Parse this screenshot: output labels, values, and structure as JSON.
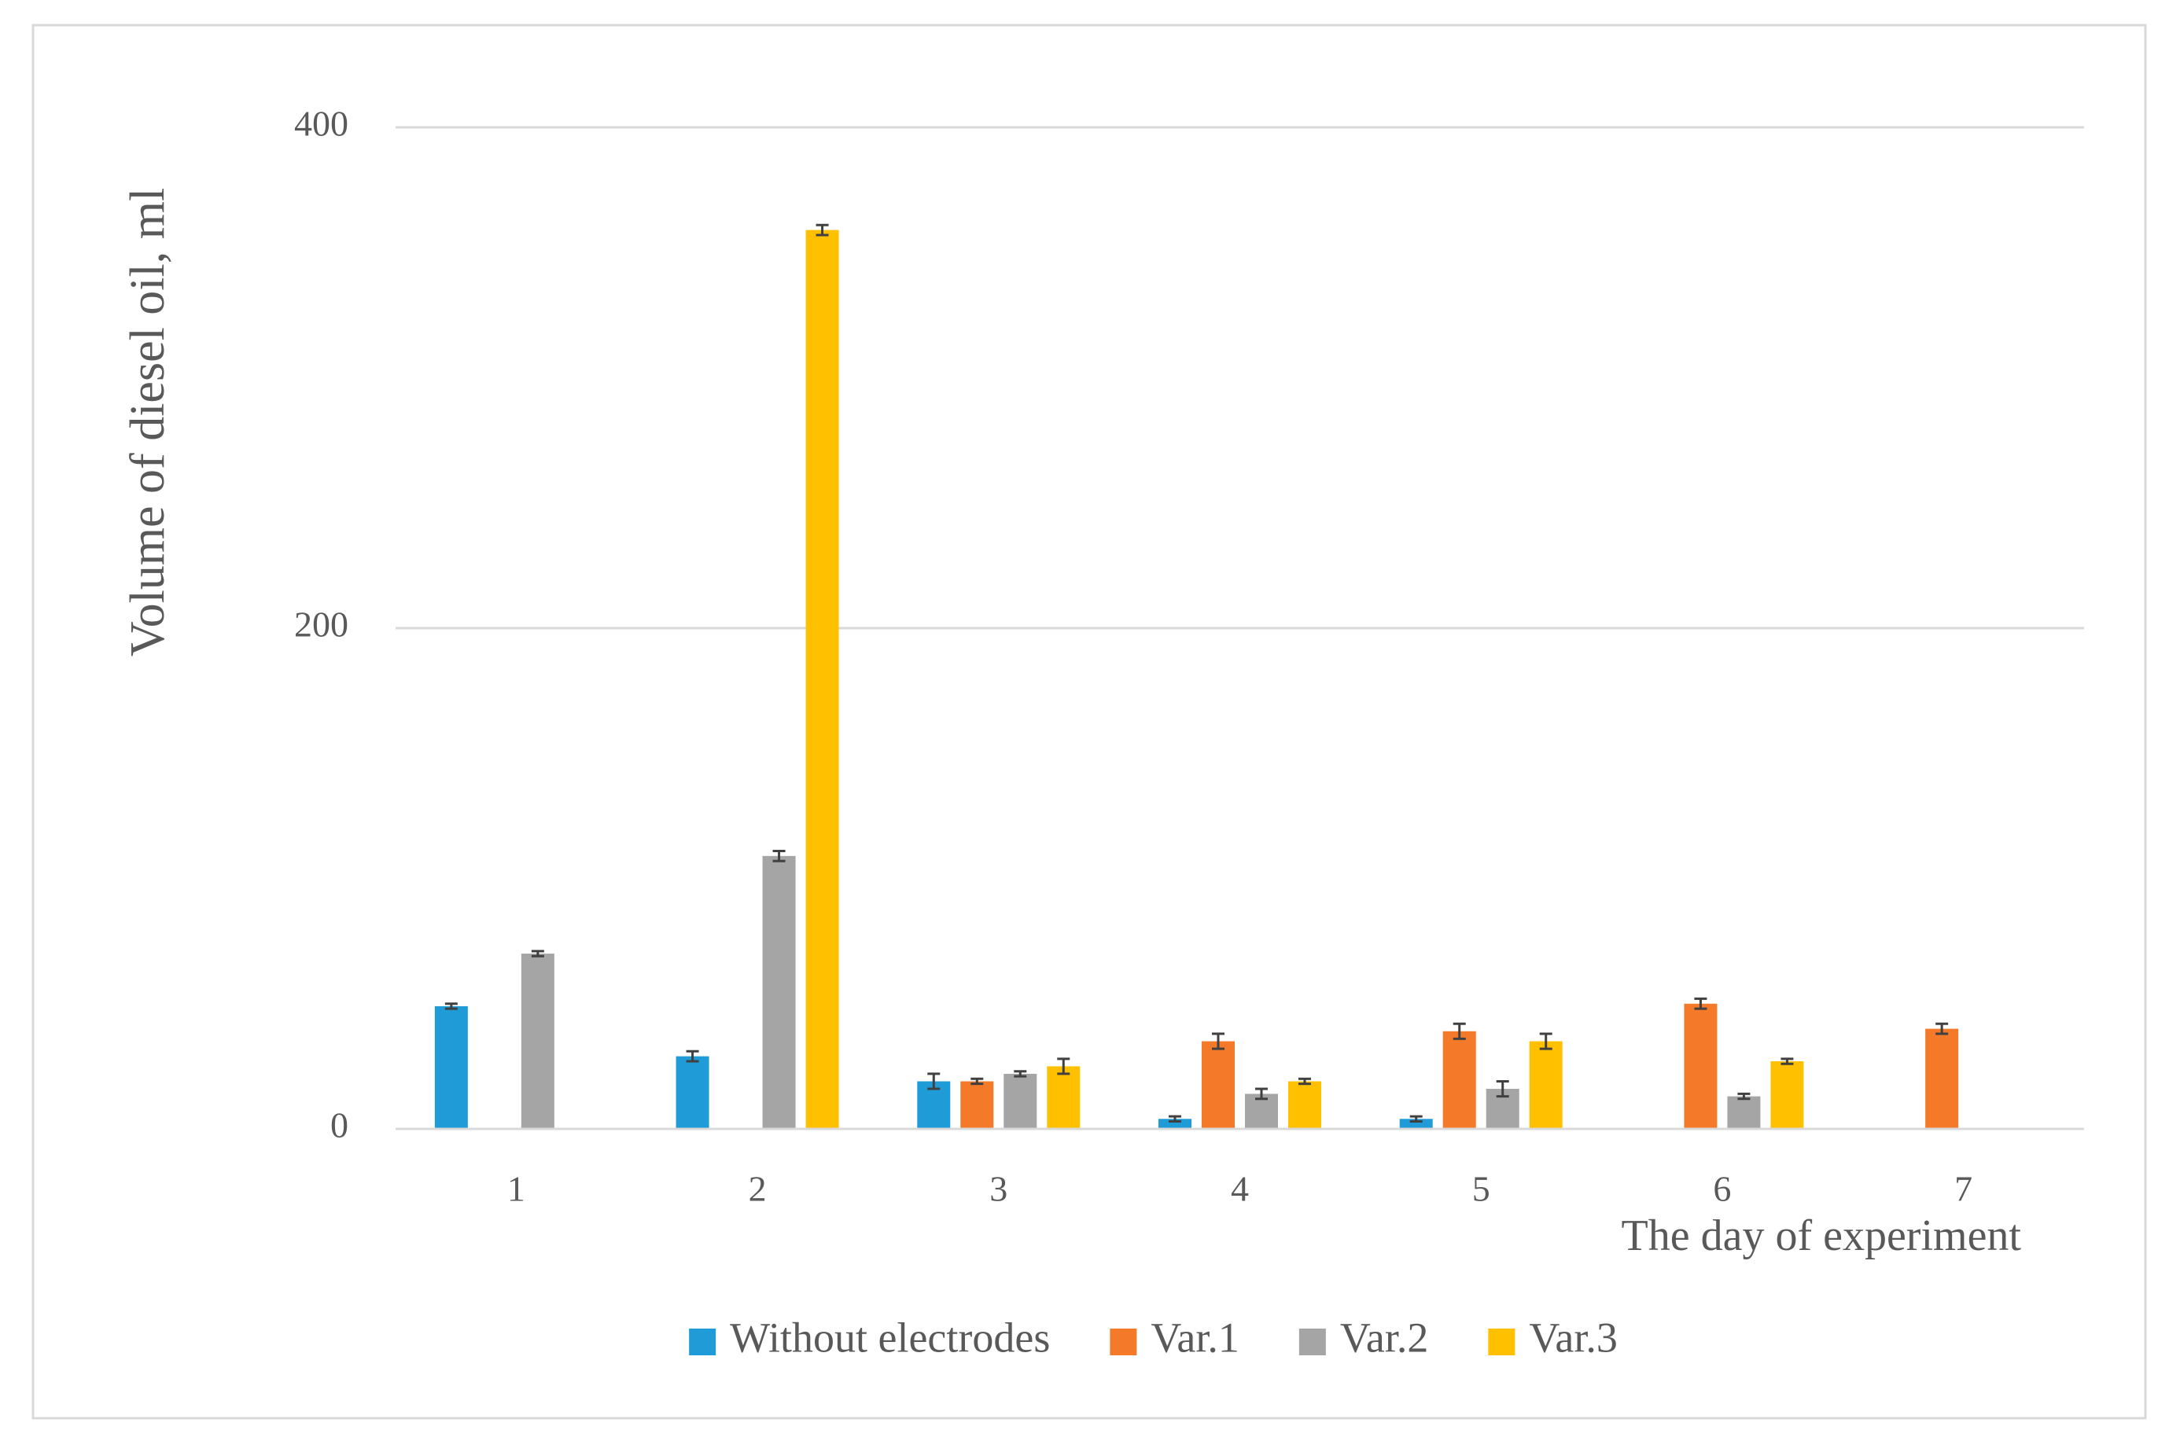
{
  "chart_data": {
    "type": "bar",
    "x_label": "The day of experiment",
    "y_label": "Volume of diesel oil, ml",
    "categories": [
      "1",
      "2",
      "3",
      "4",
      "5",
      "6",
      "7"
    ],
    "series": [
      {
        "name": "Without electrodes",
        "color": "#1f9bd7",
        "values": [
          49,
          29,
          19,
          4,
          4,
          null,
          null
        ],
        "errors": [
          1,
          2,
          3,
          1,
          1,
          null,
          null
        ]
      },
      {
        "name": "Var.1",
        "color": "#f47a2a",
        "values": [
          null,
          null,
          19,
          35,
          39,
          50,
          40
        ],
        "errors": [
          null,
          null,
          1,
          3,
          3,
          2,
          2
        ]
      },
      {
        "name": "Var.2",
        "color": "#a5a5a5",
        "values": [
          70,
          109,
          22,
          14,
          16,
          13,
          0
        ],
        "errors": [
          1,
          2,
          1,
          2,
          3,
          1,
          0
        ]
      },
      {
        "name": "Var.3",
        "color": "#ffc000",
        "values": [
          null,
          359,
          25,
          19,
          35,
          27,
          null
        ],
        "errors": [
          null,
          2,
          3,
          1,
          3,
          1,
          null
        ]
      }
    ],
    "ylim": [
      0,
      400
    ],
    "yticks": [
      0,
      200,
      400
    ],
    "grid": true,
    "legend": "bottom"
  }
}
